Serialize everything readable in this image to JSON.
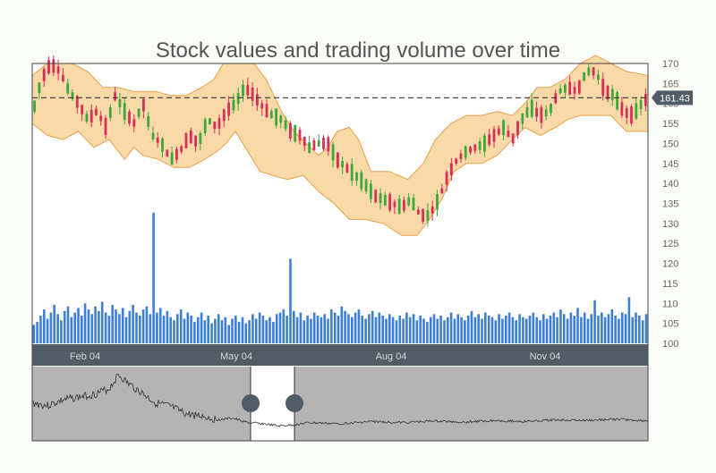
{
  "chart_data": {
    "type": "candlestick",
    "title": "Stock values and trading volume over time",
    "y_axis": {
      "ylim": [
        100,
        170
      ],
      "ticks": [
        100,
        105,
        110,
        115,
        120,
        125,
        130,
        135,
        140,
        145,
        150,
        155,
        160,
        165,
        170
      ],
      "position": "right"
    },
    "x_axis": {
      "tick_labels": [
        "Feb 04",
        "May 04",
        "Aug 04",
        "Nov 04"
      ]
    },
    "current_price": {
      "value": 161.43,
      "label": "161.43"
    },
    "colors": {
      "up": "#3ea83a",
      "down": "#d6305a",
      "band_fill": "#f9d9a8",
      "band_stroke": "#e8a048",
      "volume": "#3d7fd6",
      "navigator_bg": "#b4b4b4",
      "axis_bar": "#525c66"
    },
    "price_path": [
      [
        0,
        157
      ],
      [
        6,
        166
      ],
      [
        12,
        170
      ],
      [
        18,
        168
      ],
      [
        24,
        163
      ],
      [
        30,
        160
      ],
      [
        36,
        156
      ],
      [
        42,
        158
      ],
      [
        48,
        154
      ],
      [
        54,
        162
      ],
      [
        60,
        158
      ],
      [
        66,
        155
      ],
      [
        72,
        160
      ],
      [
        78,
        152
      ],
      [
        84,
        150
      ],
      [
        90,
        146
      ],
      [
        96,
        148
      ],
      [
        102,
        152
      ],
      [
        108,
        150
      ],
      [
        114,
        156
      ],
      [
        120,
        154
      ],
      [
        126,
        158
      ],
      [
        132,
        160
      ],
      [
        138,
        164
      ],
      [
        144,
        162
      ],
      [
        150,
        159
      ],
      [
        156,
        157
      ],
      [
        162,
        156
      ],
      [
        168,
        153
      ],
      [
        174,
        152
      ],
      [
        180,
        149
      ],
      [
        186,
        150
      ],
      [
        192,
        150
      ],
      [
        198,
        146
      ],
      [
        204,
        144
      ],
      [
        210,
        142
      ],
      [
        216,
        140
      ],
      [
        222,
        137
      ],
      [
        228,
        136
      ],
      [
        234,
        135
      ],
      [
        240,
        134
      ],
      [
        246,
        136
      ],
      [
        252,
        132
      ],
      [
        258,
        132
      ],
      [
        264,
        136
      ],
      [
        270,
        142
      ],
      [
        276,
        146
      ],
      [
        282,
        148
      ],
      [
        288,
        149
      ],
      [
        294,
        150
      ],
      [
        300,
        152
      ],
      [
        306,
        154
      ],
      [
        312,
        151
      ],
      [
        318,
        156
      ],
      [
        324,
        159
      ],
      [
        330,
        157
      ],
      [
        336,
        158
      ],
      [
        342,
        163
      ],
      [
        348,
        164
      ],
      [
        354,
        163
      ],
      [
        360,
        168
      ],
      [
        366,
        168
      ],
      [
        372,
        163
      ],
      [
        378,
        162
      ],
      [
        384,
        158
      ],
      [
        390,
        157
      ],
      [
        396,
        160
      ],
      [
        400,
        161.4
      ]
    ],
    "band_upper": [
      [
        0,
        167
      ],
      [
        10,
        170
      ],
      [
        26,
        170
      ],
      [
        36,
        168
      ],
      [
        46,
        164
      ],
      [
        56,
        164
      ],
      [
        66,
        163
      ],
      [
        80,
        163
      ],
      [
        90,
        162
      ],
      [
        100,
        162
      ],
      [
        110,
        164
      ],
      [
        118,
        166
      ],
      [
        124,
        170
      ],
      [
        134,
        170
      ],
      [
        144,
        170
      ],
      [
        152,
        166
      ],
      [
        162,
        158
      ],
      [
        170,
        153
      ],
      [
        178,
        150
      ],
      [
        186,
        147
      ],
      [
        192,
        149
      ],
      [
        198,
        153
      ],
      [
        206,
        154
      ],
      [
        212,
        151
      ],
      [
        220,
        143
      ],
      [
        232,
        143
      ],
      [
        244,
        141
      ],
      [
        254,
        145
      ],
      [
        262,
        151
      ],
      [
        272,
        155
      ],
      [
        282,
        157
      ],
      [
        292,
        157
      ],
      [
        302,
        158
      ],
      [
        312,
        157
      ],
      [
        320,
        160
      ],
      [
        328,
        164
      ],
      [
        336,
        164
      ],
      [
        346,
        166
      ],
      [
        356,
        170
      ],
      [
        366,
        172
      ],
      [
        376,
        170
      ],
      [
        386,
        168
      ],
      [
        400,
        167
      ]
    ],
    "band_lower": [
      [
        0,
        155
      ],
      [
        10,
        152
      ],
      [
        20,
        151
      ],
      [
        30,
        153
      ],
      [
        40,
        149
      ],
      [
        50,
        151
      ],
      [
        60,
        146
      ],
      [
        66,
        149
      ],
      [
        72,
        147
      ],
      [
        82,
        146
      ],
      [
        92,
        144
      ],
      [
        102,
        144
      ],
      [
        112,
        146
      ],
      [
        120,
        148
      ],
      [
        126,
        150
      ],
      [
        132,
        153
      ],
      [
        140,
        148
      ],
      [
        148,
        143
      ],
      [
        156,
        142
      ],
      [
        166,
        141
      ],
      [
        176,
        142
      ],
      [
        186,
        138
      ],
      [
        196,
        135
      ],
      [
        206,
        131
      ],
      [
        216,
        131
      ],
      [
        228,
        130
      ],
      [
        240,
        127
      ],
      [
        250,
        127
      ],
      [
        258,
        131
      ],
      [
        266,
        136
      ],
      [
        274,
        143
      ],
      [
        282,
        145
      ],
      [
        292,
        145
      ],
      [
        302,
        147
      ],
      [
        312,
        151
      ],
      [
        320,
        154
      ],
      [
        330,
        152
      ],
      [
        340,
        154
      ],
      [
        348,
        156
      ],
      [
        356,
        157
      ],
      [
        366,
        157
      ],
      [
        376,
        157
      ],
      [
        386,
        153
      ],
      [
        400,
        153
      ]
    ],
    "volume_relative": [
      0.12,
      0.14,
      0.18,
      0.22,
      0.16,
      0.2,
      0.25,
      0.19,
      0.15,
      0.21,
      0.24,
      0.17,
      0.2,
      0.23,
      0.18,
      0.26,
      0.22,
      0.19,
      0.24,
      0.21,
      0.27,
      0.2,
      0.18,
      0.25,
      0.22,
      0.19,
      0.23,
      0.17,
      0.21,
      0.25,
      0.2,
      0.18,
      0.22,
      0.24,
      0.19,
      0.85,
      0.2,
      0.23,
      0.18,
      0.21,
      0.17,
      0.15,
      0.19,
      0.22,
      0.16,
      0.2,
      0.18,
      0.14,
      0.17,
      0.2,
      0.15,
      0.18,
      0.13,
      0.16,
      0.19,
      0.15,
      0.17,
      0.12,
      0.16,
      0.18,
      0.14,
      0.17,
      0.13,
      0.15,
      0.19,
      0.16,
      0.2,
      0.18,
      0.15,
      0.17,
      0.14,
      0.19,
      0.2,
      0.22,
      0.18,
      0.55,
      0.21,
      0.17,
      0.2,
      0.15,
      0.18,
      0.16,
      0.2,
      0.18,
      0.17,
      0.19,
      0.16,
      0.22,
      0.2,
      0.18,
      0.24,
      0.21,
      0.19,
      0.17,
      0.2,
      0.22,
      0.18,
      0.16,
      0.19,
      0.21,
      0.17,
      0.2,
      0.18,
      0.16,
      0.19,
      0.17,
      0.15,
      0.18,
      0.16,
      0.2,
      0.17,
      0.19,
      0.15,
      0.18,
      0.16,
      0.14,
      0.17,
      0.19,
      0.16,
      0.18,
      0.15,
      0.17,
      0.2,
      0.16,
      0.19,
      0.17,
      0.15,
      0.18,
      0.21,
      0.17,
      0.19,
      0.16,
      0.2,
      0.18,
      0.17,
      0.15,
      0.19,
      0.16,
      0.18,
      0.2,
      0.17,
      0.15,
      0.19,
      0.17,
      0.16,
      0.18,
      0.2,
      0.17,
      0.15,
      0.19,
      0.16,
      0.18,
      0.2,
      0.17,
      0.22,
      0.19,
      0.16,
      0.2,
      0.18,
      0.23,
      0.17,
      0.2,
      0.16,
      0.19,
      0.28,
      0.18,
      0.2,
      0.17,
      0.19,
      0.22,
      0.18,
      0.16,
      0.2,
      0.19,
      0.3,
      0.17,
      0.2,
      0.18,
      0.15,
      0.19
    ],
    "navigator_path": [
      [
        0,
        0.55
      ],
      [
        10,
        0.6
      ],
      [
        20,
        0.5
      ],
      [
        30,
        0.45
      ],
      [
        40,
        0.4
      ],
      [
        50,
        0.3
      ],
      [
        56,
        0.05
      ],
      [
        62,
        0.2
      ],
      [
        70,
        0.35
      ],
      [
        80,
        0.55
      ],
      [
        90,
        0.62
      ],
      [
        100,
        0.75
      ],
      [
        110,
        0.78
      ],
      [
        120,
        0.85
      ],
      [
        130,
        0.82
      ],
      [
        140,
        0.9
      ],
      [
        150,
        0.92
      ],
      [
        160,
        0.96
      ],
      [
        170,
        0.94
      ],
      [
        180,
        0.9
      ],
      [
        200,
        0.92
      ],
      [
        220,
        0.88
      ],
      [
        240,
        0.9
      ],
      [
        260,
        0.87
      ],
      [
        280,
        0.89
      ],
      [
        300,
        0.86
      ],
      [
        320,
        0.88
      ],
      [
        340,
        0.85
      ],
      [
        360,
        0.86
      ],
      [
        380,
        0.84
      ],
      [
        400,
        0.87
      ]
    ]
  }
}
